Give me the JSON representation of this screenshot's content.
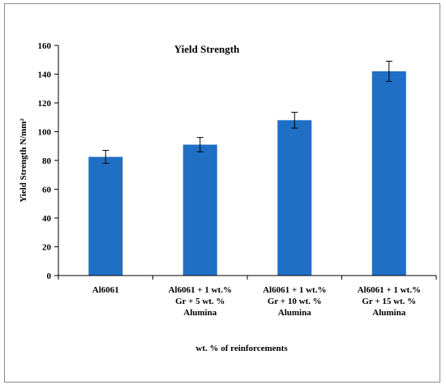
{
  "chart_data": {
    "type": "bar",
    "title": "Yield Strength",
    "ylabel": "Yield  Strength  N/mm²",
    "xlabel": "wt. % of  reinforcements",
    "categories": [
      [
        "Al6061"
      ],
      [
        "Al6061 + 1 wt.%",
        "Gr + 5 wt. %",
        "Alumina"
      ],
      [
        "Al6061 + 1 wt.%",
        "Gr + 10 wt. %",
        "Alumina"
      ],
      [
        "Al6061 + 1 wt.%",
        "Gr + 15 wt. %",
        "Alumina"
      ]
    ],
    "values": [
      82.5,
      91,
      108,
      142
    ],
    "error": [
      4.5,
      5,
      5.5,
      7
    ],
    "ylim": [
      0,
      160
    ],
    "yticks": [
      0,
      20,
      40,
      60,
      80,
      100,
      120,
      140,
      160
    ],
    "grid": false,
    "legend": "none",
    "bar_color": "#1f6fc5",
    "axis_color": "#000000",
    "frame_color": "#8c8c8c"
  }
}
